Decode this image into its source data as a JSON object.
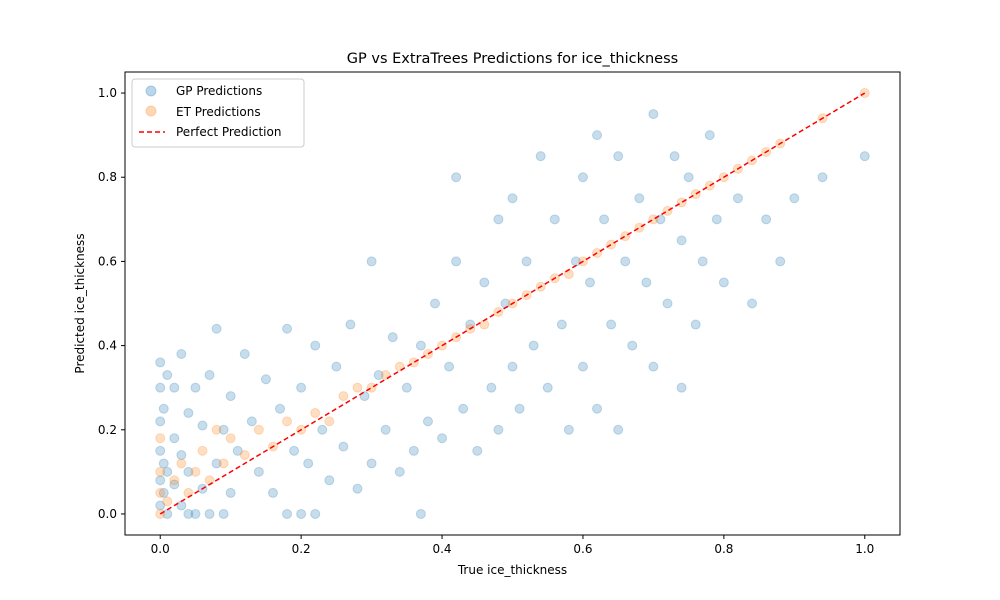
{
  "chart_data": {
    "type": "scatter",
    "title": "GP vs ExtraTrees Predictions for ice_thickness",
    "xlabel": "True ice_thickness",
    "ylabel": "Predicted ice_thickness",
    "xlim": [
      -0.05,
      1.05
    ],
    "ylim": [
      -0.05,
      1.05
    ],
    "x_ticks": [
      "0.0",
      "0.2",
      "0.4",
      "0.6",
      "0.8",
      "1.0"
    ],
    "y_ticks": [
      "0.0",
      "0.2",
      "0.4",
      "0.6",
      "0.8",
      "1.0"
    ],
    "grid": false,
    "legend_position": "top-left",
    "series": [
      {
        "name": "GP Predictions",
        "color": "#1f77b4",
        "alpha": 0.25,
        "points": [
          [
            0.0,
            0.02
          ],
          [
            0.0,
            0.08
          ],
          [
            0.0,
            0.15
          ],
          [
            0.0,
            0.22
          ],
          [
            0.0,
            0.3
          ],
          [
            0.0,
            0.36
          ],
          [
            0.005,
            0.05
          ],
          [
            0.005,
            0.12
          ],
          [
            0.005,
            0.25
          ],
          [
            0.01,
            0.0
          ],
          [
            0.01,
            0.1
          ],
          [
            0.01,
            0.33
          ],
          [
            0.02,
            0.07
          ],
          [
            0.02,
            0.18
          ],
          [
            0.02,
            0.3
          ],
          [
            0.03,
            0.02
          ],
          [
            0.03,
            0.14
          ],
          [
            0.03,
            0.38
          ],
          [
            0.04,
            0.0
          ],
          [
            0.04,
            0.1
          ],
          [
            0.04,
            0.24
          ],
          [
            0.05,
            0.0
          ],
          [
            0.05,
            0.3
          ],
          [
            0.06,
            0.06
          ],
          [
            0.06,
            0.21
          ],
          [
            0.07,
            0.0
          ],
          [
            0.07,
            0.33
          ],
          [
            0.08,
            0.12
          ],
          [
            0.08,
            0.44
          ],
          [
            0.09,
            0.0
          ],
          [
            0.09,
            0.2
          ],
          [
            0.1,
            0.05
          ],
          [
            0.1,
            0.28
          ],
          [
            0.11,
            0.15
          ],
          [
            0.12,
            0.38
          ],
          [
            0.13,
            0.22
          ],
          [
            0.14,
            0.1
          ],
          [
            0.15,
            0.32
          ],
          [
            0.16,
            0.05
          ],
          [
            0.17,
            0.25
          ],
          [
            0.18,
            0.0
          ],
          [
            0.18,
            0.44
          ],
          [
            0.19,
            0.15
          ],
          [
            0.2,
            0.0
          ],
          [
            0.2,
            0.3
          ],
          [
            0.21,
            0.12
          ],
          [
            0.22,
            0.0
          ],
          [
            0.22,
            0.4
          ],
          [
            0.23,
            0.2
          ],
          [
            0.24,
            0.08
          ],
          [
            0.25,
            0.35
          ],
          [
            0.26,
            0.16
          ],
          [
            0.27,
            0.45
          ],
          [
            0.28,
            0.06
          ],
          [
            0.29,
            0.28
          ],
          [
            0.3,
            0.6
          ],
          [
            0.3,
            0.12
          ],
          [
            0.31,
            0.33
          ],
          [
            0.32,
            0.2
          ],
          [
            0.33,
            0.42
          ],
          [
            0.34,
            0.1
          ],
          [
            0.35,
            0.3
          ],
          [
            0.36,
            0.15
          ],
          [
            0.37,
            0.0
          ],
          [
            0.37,
            0.4
          ],
          [
            0.38,
            0.22
          ],
          [
            0.39,
            0.5
          ],
          [
            0.4,
            0.18
          ],
          [
            0.41,
            0.35
          ],
          [
            0.42,
            0.6
          ],
          [
            0.42,
            0.8
          ],
          [
            0.43,
            0.25
          ],
          [
            0.44,
            0.45
          ],
          [
            0.45,
            0.15
          ],
          [
            0.46,
            0.55
          ],
          [
            0.47,
            0.3
          ],
          [
            0.48,
            0.7
          ],
          [
            0.48,
            0.2
          ],
          [
            0.49,
            0.5
          ],
          [
            0.5,
            0.35
          ],
          [
            0.5,
            0.75
          ],
          [
            0.51,
            0.25
          ],
          [
            0.52,
            0.6
          ],
          [
            0.53,
            0.4
          ],
          [
            0.54,
            0.85
          ],
          [
            0.55,
            0.3
          ],
          [
            0.56,
            0.7
          ],
          [
            0.57,
            0.45
          ],
          [
            0.58,
            0.2
          ],
          [
            0.59,
            0.6
          ],
          [
            0.6,
            0.8
          ],
          [
            0.6,
            0.35
          ],
          [
            0.61,
            0.55
          ],
          [
            0.62,
            0.25
          ],
          [
            0.62,
            0.9
          ],
          [
            0.63,
            0.7
          ],
          [
            0.64,
            0.45
          ],
          [
            0.65,
            0.2
          ],
          [
            0.65,
            0.85
          ],
          [
            0.66,
            0.6
          ],
          [
            0.67,
            0.4
          ],
          [
            0.68,
            0.75
          ],
          [
            0.69,
            0.55
          ],
          [
            0.7,
            0.95
          ],
          [
            0.7,
            0.35
          ],
          [
            0.71,
            0.7
          ],
          [
            0.72,
            0.5
          ],
          [
            0.73,
            0.85
          ],
          [
            0.74,
            0.3
          ],
          [
            0.74,
            0.65
          ],
          [
            0.75,
            0.8
          ],
          [
            0.76,
            0.45
          ],
          [
            0.77,
            0.6
          ],
          [
            0.78,
            0.9
          ],
          [
            0.79,
            0.7
          ],
          [
            0.8,
            0.55
          ],
          [
            0.82,
            0.75
          ],
          [
            0.84,
            0.5
          ],
          [
            0.86,
            0.7
          ],
          [
            0.88,
            0.6
          ],
          [
            0.9,
            0.75
          ],
          [
            0.94,
            0.8
          ],
          [
            1.0,
            0.85
          ]
        ]
      },
      {
        "name": "ET Predictions",
        "color": "#ff7f0e",
        "alpha": 0.25,
        "points": [
          [
            0.0,
            0.0
          ],
          [
            0.0,
            0.05
          ],
          [
            0.0,
            0.1
          ],
          [
            0.0,
            0.18
          ],
          [
            0.01,
            0.03
          ],
          [
            0.02,
            0.08
          ],
          [
            0.03,
            0.12
          ],
          [
            0.04,
            0.05
          ],
          [
            0.05,
            0.1
          ],
          [
            0.06,
            0.15
          ],
          [
            0.07,
            0.08
          ],
          [
            0.08,
            0.2
          ],
          [
            0.09,
            0.12
          ],
          [
            0.1,
            0.18
          ],
          [
            0.12,
            0.14
          ],
          [
            0.14,
            0.2
          ],
          [
            0.16,
            0.16
          ],
          [
            0.18,
            0.22
          ],
          [
            0.2,
            0.2
          ],
          [
            0.22,
            0.24
          ],
          [
            0.24,
            0.22
          ],
          [
            0.26,
            0.28
          ],
          [
            0.28,
            0.3
          ],
          [
            0.3,
            0.3
          ],
          [
            0.32,
            0.33
          ],
          [
            0.34,
            0.35
          ],
          [
            0.36,
            0.36
          ],
          [
            0.38,
            0.38
          ],
          [
            0.4,
            0.4
          ],
          [
            0.42,
            0.42
          ],
          [
            0.44,
            0.44
          ],
          [
            0.46,
            0.45
          ],
          [
            0.48,
            0.48
          ],
          [
            0.5,
            0.5
          ],
          [
            0.52,
            0.52
          ],
          [
            0.54,
            0.54
          ],
          [
            0.56,
            0.56
          ],
          [
            0.58,
            0.57
          ],
          [
            0.6,
            0.6
          ],
          [
            0.62,
            0.62
          ],
          [
            0.64,
            0.64
          ],
          [
            0.66,
            0.66
          ],
          [
            0.68,
            0.68
          ],
          [
            0.7,
            0.7
          ],
          [
            0.72,
            0.72
          ],
          [
            0.74,
            0.74
          ],
          [
            0.76,
            0.76
          ],
          [
            0.78,
            0.78
          ],
          [
            0.8,
            0.8
          ],
          [
            0.82,
            0.82
          ],
          [
            0.84,
            0.84
          ],
          [
            0.86,
            0.86
          ],
          [
            0.88,
            0.88
          ],
          [
            0.94,
            0.94
          ],
          [
            1.0,
            1.0
          ]
        ]
      }
    ],
    "reference_line": {
      "name": "Perfect Prediction",
      "color": "#ff0000",
      "style": "dashed",
      "x": [
        0.0,
        1.0
      ],
      "y": [
        0.0,
        1.0
      ]
    }
  }
}
